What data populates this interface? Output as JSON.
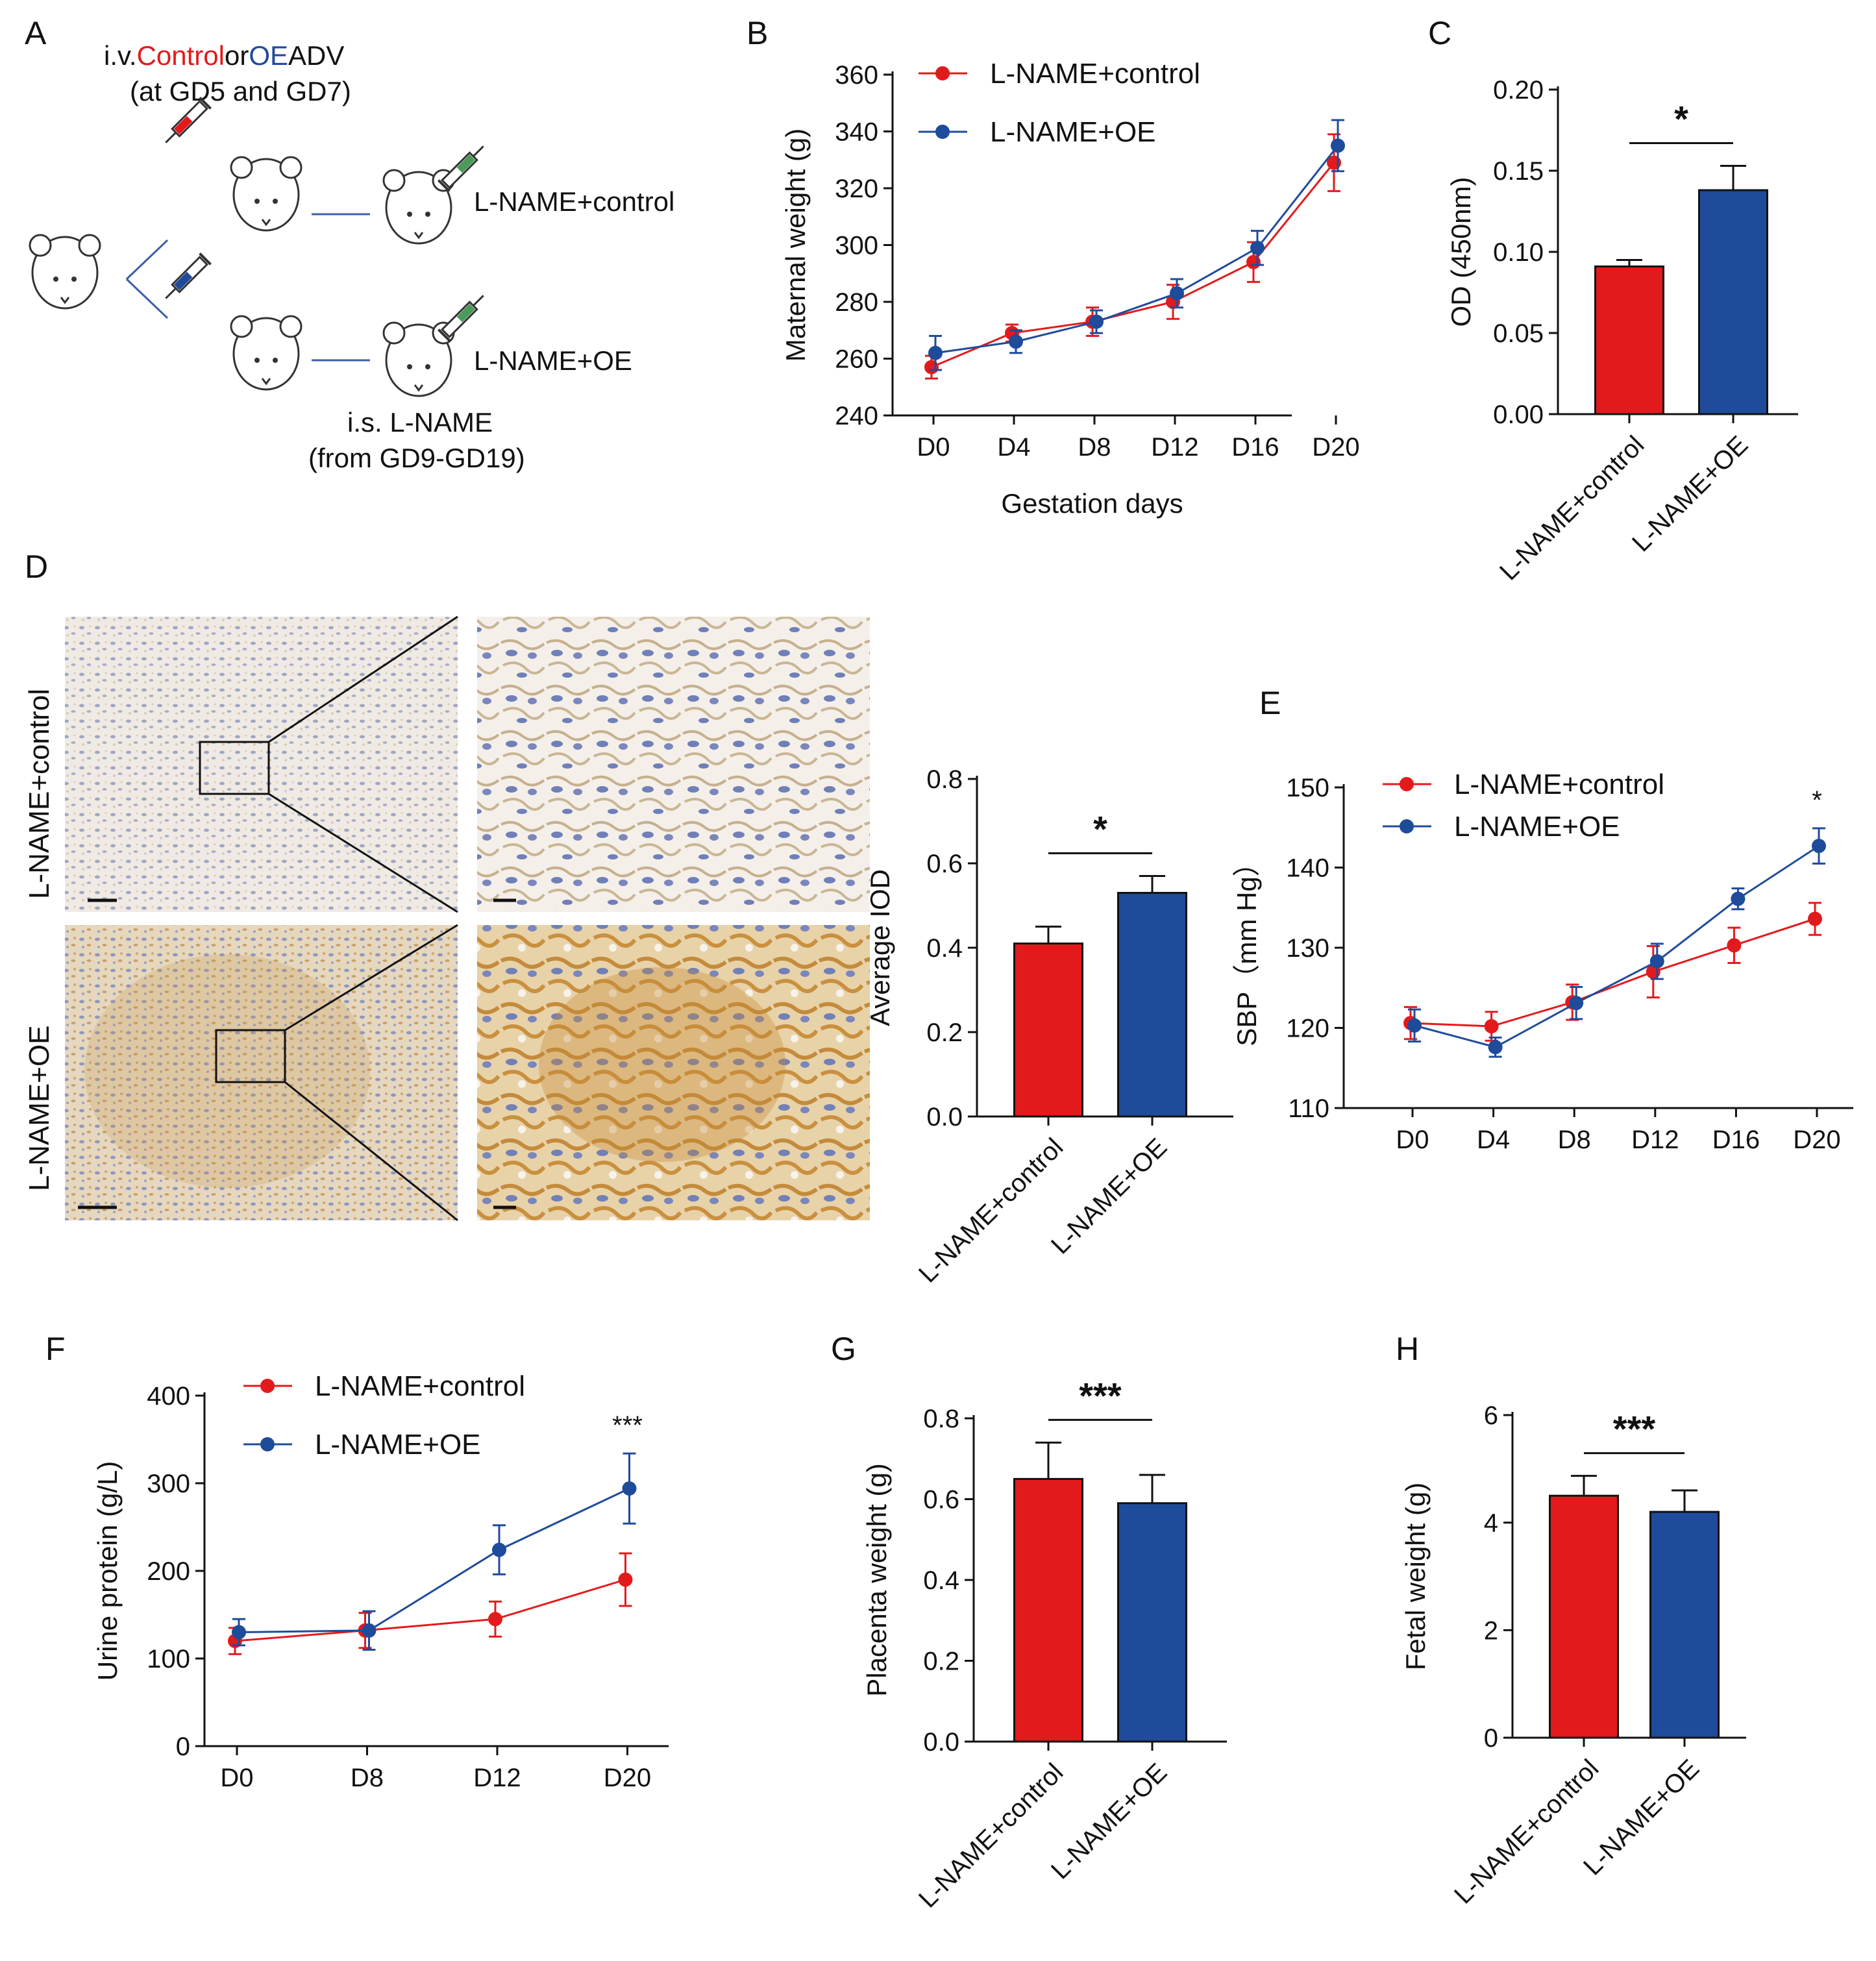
{
  "colors": {
    "control": "#e31a1c",
    "oe": "#1f4b9b",
    "axis": "#111111"
  },
  "panel_labels": [
    "A",
    "B",
    "C",
    "D",
    "E",
    "F",
    "G",
    "H"
  ],
  "panel_a": {
    "line1_prefix": "i.v.",
    "line1_control": "Control",
    "line1_or": "or",
    "line1_oe": "OE",
    "line1_suffix": "ADV",
    "line2": "(at GD5 and GD7)",
    "group1": "L-NAME+control",
    "group2": "L-NAME+OE",
    "bottom1": "i.s. L-NAME",
    "bottom2": "(from GD9-GD19)",
    "icons": [
      "mouse-icon",
      "syringe-icon"
    ]
  },
  "panel_d": {
    "row_labels": [
      "L-NAME+control",
      "L-NAME+OE"
    ],
    "image_desc": [
      "ihc-low-mag",
      "ihc-high-mag"
    ]
  },
  "chart_data": [
    {
      "id": "B",
      "type": "line",
      "title": "",
      "xlabel": "Gestation days",
      "ylabel": "Maternal weight (g)",
      "categories": [
        "D0",
        "D4",
        "D8",
        "D12",
        "D16",
        "D20"
      ],
      "ylim": [
        240,
        360
      ],
      "yticks": [
        240,
        260,
        280,
        300,
        320,
        340,
        360
      ],
      "series": [
        {
          "name": "L-NAME+control",
          "color": "#e31a1c",
          "values": [
            257,
            269,
            273,
            280,
            294,
            329
          ],
          "err": [
            4,
            3,
            5,
            6,
            7,
            10
          ]
        },
        {
          "name": "L-NAME+OE",
          "color": "#1f4b9b",
          "values": [
            262,
            266,
            273,
            283,
            299,
            335
          ],
          "err": [
            6,
            4,
            4,
            5,
            6,
            9
          ]
        }
      ],
      "legend": "top-left"
    },
    {
      "id": "C",
      "type": "bar",
      "ylabel": "OD (450nm)",
      "categories": [
        "L-NAME+control",
        "L-NAME+OE"
      ],
      "values": [
        0.091,
        0.138
      ],
      "err": [
        0.004,
        0.015
      ],
      "ylim": [
        0,
        0.2
      ],
      "yticks": [
        "0.00",
        "0.05",
        "0.10",
        "0.15",
        "0.20"
      ],
      "significance": "*"
    },
    {
      "id": "D",
      "type": "bar",
      "ylabel": "Average IOD",
      "categories": [
        "L-NAME+control",
        "L-NAME+OE"
      ],
      "values": [
        0.41,
        0.53
      ],
      "err": [
        0.04,
        0.04
      ],
      "ylim": [
        0,
        0.8
      ],
      "yticks": [
        "0.0",
        "0.2",
        "0.4",
        "0.6",
        "0.8"
      ],
      "significance": "*"
    },
    {
      "id": "E",
      "type": "line",
      "ylabel": "SBP（mm Hg）",
      "categories": [
        "D0",
        "D4",
        "D8",
        "D12",
        "D16",
        "D20"
      ],
      "ylim": [
        110,
        150
      ],
      "yticks": [
        110,
        120,
        130,
        140,
        150
      ],
      "series": [
        {
          "name": "L-NAME+control",
          "color": "#e31a1c",
          "values": [
            120.6,
            120.2,
            123.2,
            127.0,
            130.3,
            133.6
          ],
          "err": [
            2.0,
            1.8,
            2.2,
            3.2,
            2.2,
            2.0
          ]
        },
        {
          "name": "L-NAME+OE",
          "color": "#1f4b9b",
          "values": [
            120.3,
            117.6,
            123.1,
            128.3,
            136.1,
            142.7
          ],
          "err": [
            2.0,
            1.2,
            2.0,
            2.2,
            1.3,
            2.2
          ]
        }
      ],
      "annotation": {
        "at": "D20",
        "text": "*"
      },
      "legend": "top-left"
    },
    {
      "id": "F",
      "type": "line",
      "ylabel": "Urine protein (g/L)",
      "categories": [
        "D0",
        "D8",
        "D12",
        "D20"
      ],
      "ylim": [
        0,
        400
      ],
      "yticks": [
        0,
        100,
        200,
        300,
        400
      ],
      "series": [
        {
          "name": "L-NAME+control",
          "color": "#e31a1c",
          "values": [
            120,
            132,
            145,
            190
          ],
          "err": [
            15,
            20,
            20,
            30
          ]
        },
        {
          "name": "L-NAME+OE",
          "color": "#1f4b9b",
          "values": [
            130,
            132,
            224,
            294
          ],
          "err": [
            15,
            22,
            28,
            40
          ]
        }
      ],
      "annotation": {
        "at": "D20",
        "text": "***"
      },
      "legend": "top-left"
    },
    {
      "id": "G",
      "type": "bar",
      "ylabel": "Placenta weight (g)",
      "categories": [
        "L-NAME+control",
        "L-NAME+OE"
      ],
      "values": [
        0.65,
        0.59
      ],
      "err": [
        0.09,
        0.07
      ],
      "ylim": [
        0,
        0.8
      ],
      "yticks": [
        "0.0",
        "0.2",
        "0.4",
        "0.6",
        "0.8"
      ],
      "significance": "***"
    },
    {
      "id": "H",
      "type": "bar",
      "ylabel": "Fetal weight (g)",
      "categories": [
        "L-NAME+control",
        "L-NAME+OE"
      ],
      "values": [
        4.5,
        4.2
      ],
      "err": [
        0.37,
        0.4
      ],
      "ylim": [
        0,
        6
      ],
      "yticks": [
        "0",
        "2",
        "4",
        "6"
      ],
      "significance": "***"
    }
  ]
}
